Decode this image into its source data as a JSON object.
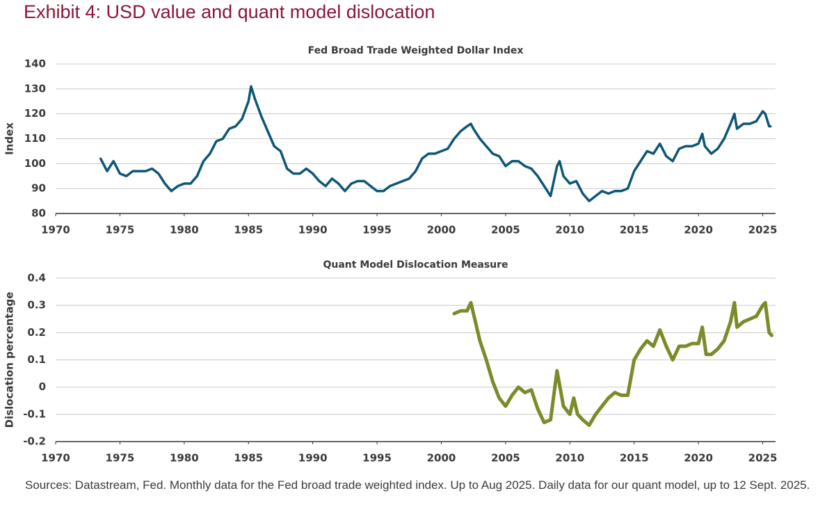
{
  "title": "Exhibit 4: USD value and quant model dislocation",
  "source": "Sources: Datastream, Fed. Monthly data for the Fed broad trade weighted index. Up to Aug 2025. Daily data for our quant model, up to 12 Sept. 2025.",
  "chart_data": [
    {
      "type": "line",
      "title": "Fed Broad Trade Weighted Dollar Index",
      "ylabel": "Index",
      "color": "#0d5674",
      "line_width": 3.5,
      "x": [
        1973.5,
        1974,
        1974.5,
        1975,
        1975.5,
        1976,
        1976.5,
        1977,
        1977.5,
        1978,
        1978.5,
        1979,
        1979.5,
        1980,
        1980.5,
        1981,
        1981.5,
        1982,
        1982.5,
        1983,
        1983.5,
        1984,
        1984.5,
        1985,
        1985.2,
        1985.5,
        1986,
        1986.5,
        1987,
        1987.5,
        1988,
        1988.5,
        1989,
        1989.5,
        1990,
        1990.5,
        1991,
        1991.5,
        1992,
        1992.5,
        1993,
        1993.5,
        1994,
        1994.5,
        1995,
        1995.5,
        1996,
        1996.5,
        1997,
        1997.5,
        1998,
        1998.5,
        1999,
        1999.5,
        2000,
        2000.5,
        2001,
        2001.5,
        2002,
        2002.3,
        2002.5,
        2003,
        2003.5,
        2004,
        2004.5,
        2005,
        2005.5,
        2006,
        2006.5,
        2007,
        2007.5,
        2008,
        2008.5,
        2009,
        2009.2,
        2009.5,
        2010,
        2010.5,
        2011,
        2011.5,
        2012,
        2012.5,
        2013,
        2013.5,
        2014,
        2014.5,
        2015,
        2015.5,
        2016,
        2016.5,
        2017,
        2017.5,
        2018,
        2018.5,
        2019,
        2019.5,
        2020,
        2020.3,
        2020.5,
        2021,
        2021.5,
        2022,
        2022.5,
        2022.8,
        2023,
        2023.5,
        2024,
        2024.5,
        2025,
        2025.2,
        2025.5,
        2025.6
      ],
      "values": [
        102,
        97,
        101,
        96,
        95,
        97,
        97,
        97,
        98,
        96,
        92,
        89,
        91,
        92,
        92,
        95,
        101,
        104,
        109,
        110,
        114,
        115,
        118,
        125,
        131,
        126,
        119,
        113,
        107,
        105,
        98,
        96,
        96,
        98,
        96,
        93,
        91,
        94,
        92,
        89,
        92,
        93,
        93,
        91,
        89,
        89,
        91,
        92,
        93,
        94,
        97,
        102,
        104,
        104,
        105,
        106,
        110,
        113,
        115,
        116,
        114,
        110,
        107,
        104,
        103,
        99,
        101,
        101,
        99,
        98,
        95,
        91,
        87,
        99,
        101,
        95,
        92,
        93,
        88,
        85,
        87,
        89,
        88,
        89,
        89,
        90,
        97,
        101,
        105,
        104,
        108,
        103,
        101,
        106,
        107,
        107,
        108,
        112,
        107,
        104,
        106,
        110,
        116,
        120,
        114,
        116,
        116,
        117,
        121,
        120,
        115,
        115
      ],
      "xlim": [
        1970,
        2026
      ],
      "xticks": [
        1970,
        1975,
        1980,
        1985,
        1990,
        1995,
        2000,
        2005,
        2010,
        2015,
        2020,
        2025
      ],
      "ylim": [
        80,
        140
      ],
      "yticks": [
        80,
        90,
        100,
        110,
        120,
        130,
        140
      ],
      "grid": true
    },
    {
      "type": "line",
      "title": "Quant Model Dislocation Measure",
      "ylabel": "Dislocation percentage",
      "color": "#7d8a2a",
      "line_width": 5,
      "x": [
        2001,
        2001.5,
        2002,
        2002.3,
        2002.6,
        2003,
        2003.5,
        2004,
        2004.5,
        2005,
        2005.5,
        2006,
        2006.5,
        2007,
        2007.5,
        2008,
        2008.5,
        2009,
        2009.5,
        2010,
        2010.3,
        2010.6,
        2011,
        2011.5,
        2012,
        2012.5,
        2013,
        2013.5,
        2014,
        2014.5,
        2015,
        2015.5,
        2016,
        2016.5,
        2017,
        2017.5,
        2018,
        2018.5,
        2019,
        2019.5,
        2020,
        2020.3,
        2020.6,
        2021,
        2021.5,
        2022,
        2022.5,
        2022.8,
        2023,
        2023.5,
        2024,
        2024.5,
        2025,
        2025.2,
        2025.5,
        2025.7
      ],
      "values": [
        0.27,
        0.28,
        0.28,
        0.31,
        0.25,
        0.17,
        0.1,
        0.02,
        -0.04,
        -0.07,
        -0.03,
        0.0,
        -0.02,
        -0.01,
        -0.08,
        -0.13,
        -0.12,
        0.06,
        -0.07,
        -0.1,
        -0.04,
        -0.1,
        -0.12,
        -0.14,
        -0.1,
        -0.07,
        -0.04,
        -0.02,
        -0.03,
        -0.03,
        0.1,
        0.14,
        0.17,
        0.15,
        0.21,
        0.15,
        0.1,
        0.15,
        0.15,
        0.16,
        0.16,
        0.22,
        0.12,
        0.12,
        0.14,
        0.17,
        0.24,
        0.31,
        0.22,
        0.24,
        0.25,
        0.26,
        0.3,
        0.31,
        0.2,
        0.19
      ],
      "xlim": [
        1970,
        2026
      ],
      "xticks": [
        1970,
        1975,
        1980,
        1985,
        1990,
        1995,
        2000,
        2005,
        2010,
        2015,
        2020,
        2025
      ],
      "ylim": [
        -0.2,
        0.4
      ],
      "yticks": [
        -0.2,
        -0.1,
        0,
        0.1,
        0.2,
        0.3,
        0.4
      ],
      "grid": true
    }
  ]
}
